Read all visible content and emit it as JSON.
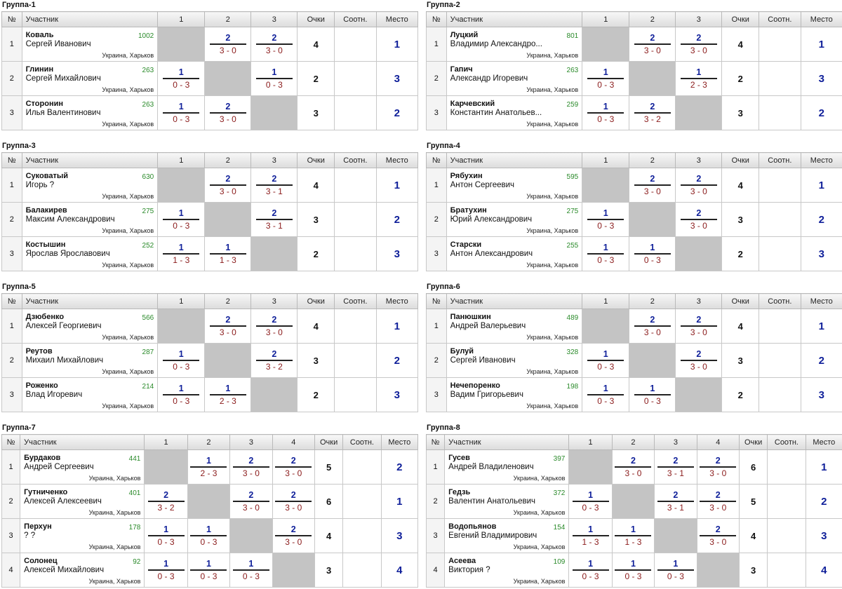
{
  "headers": {
    "num": "№",
    "participant": "Участник",
    "points": "Очки",
    "ratio": "Соотн.",
    "place": "Место"
  },
  "location": "Украина, Харьков",
  "groups": [
    {
      "title": "Группа-1",
      "cols": [
        "1",
        "2",
        "3"
      ],
      "rows": [
        {
          "no": "1",
          "surname": "Коваль",
          "name": "Сергей Иванович",
          "rating": "1002",
          "cells": [
            null,
            {
              "p": "2",
              "r": "3 - 0"
            },
            {
              "p": "2",
              "r": "3 - 0"
            }
          ],
          "points": "4",
          "ratio": "",
          "place": "1"
        },
        {
          "no": "2",
          "surname": "Глинин",
          "name": "Сергей Михайлович",
          "rating": "263",
          "cells": [
            {
              "p": "1",
              "r": "0 - 3"
            },
            null,
            {
              "p": "1",
              "r": "0 - 3"
            }
          ],
          "points": "2",
          "ratio": "",
          "place": "3"
        },
        {
          "no": "3",
          "surname": "Сторонин",
          "name": "Илья Валентинович",
          "rating": "263",
          "cells": [
            {
              "p": "1",
              "r": "0 - 3"
            },
            {
              "p": "2",
              "r": "3 - 0"
            },
            null
          ],
          "points": "3",
          "ratio": "",
          "place": "2"
        }
      ]
    },
    {
      "title": "Группа-2",
      "cols": [
        "1",
        "2",
        "3"
      ],
      "rows": [
        {
          "no": "1",
          "surname": "Луцкий",
          "name": "Владимир Александро...",
          "rating": "801",
          "cells": [
            null,
            {
              "p": "2",
              "r": "3 - 0"
            },
            {
              "p": "2",
              "r": "3 - 0"
            }
          ],
          "points": "4",
          "ratio": "",
          "place": "1"
        },
        {
          "no": "2",
          "surname": "Гапич",
          "name": "Александр Игоревич",
          "rating": "263",
          "cells": [
            {
              "p": "1",
              "r": "0 - 3"
            },
            null,
            {
              "p": "1",
              "r": "2 - 3"
            }
          ],
          "points": "2",
          "ratio": "",
          "place": "3"
        },
        {
          "no": "3",
          "surname": "Карчевский",
          "name": "Константин Анатольев...",
          "rating": "259",
          "cells": [
            {
              "p": "1",
              "r": "0 - 3"
            },
            {
              "p": "2",
              "r": "3 - 2"
            },
            null
          ],
          "points": "3",
          "ratio": "",
          "place": "2"
        }
      ]
    },
    {
      "title": "Группа-3",
      "cols": [
        "1",
        "2",
        "3"
      ],
      "rows": [
        {
          "no": "1",
          "surname": "Суковатый",
          "name": "Игорь ?",
          "rating": "630",
          "cells": [
            null,
            {
              "p": "2",
              "r": "3 - 0"
            },
            {
              "p": "2",
              "r": "3 - 1"
            }
          ],
          "points": "4",
          "ratio": "",
          "place": "1"
        },
        {
          "no": "2",
          "surname": "Балакирев",
          "name": "Максим Александрович",
          "rating": "275",
          "cells": [
            {
              "p": "1",
              "r": "0 - 3"
            },
            null,
            {
              "p": "2",
              "r": "3 - 1"
            }
          ],
          "points": "3",
          "ratio": "",
          "place": "2"
        },
        {
          "no": "3",
          "surname": "Костышин",
          "name": "Ярослав Ярославович",
          "rating": "252",
          "cells": [
            {
              "p": "1",
              "r": "1 - 3"
            },
            {
              "p": "1",
              "r": "1 - 3"
            },
            null
          ],
          "points": "2",
          "ratio": "",
          "place": "3"
        }
      ]
    },
    {
      "title": "Группа-4",
      "cols": [
        "1",
        "2",
        "3"
      ],
      "rows": [
        {
          "no": "1",
          "surname": "Рябухин",
          "name": "Антон Сергеевич",
          "rating": "595",
          "cells": [
            null,
            {
              "p": "2",
              "r": "3 - 0"
            },
            {
              "p": "2",
              "r": "3 - 0"
            }
          ],
          "points": "4",
          "ratio": "",
          "place": "1"
        },
        {
          "no": "2",
          "surname": "Братухин",
          "name": "Юрий Александрович",
          "rating": "275",
          "cells": [
            {
              "p": "1",
              "r": "0 - 3"
            },
            null,
            {
              "p": "2",
              "r": "3 - 0"
            }
          ],
          "points": "3",
          "ratio": "",
          "place": "2"
        },
        {
          "no": "3",
          "surname": "Старски",
          "name": "Антон Александрович",
          "rating": "255",
          "cells": [
            {
              "p": "1",
              "r": "0 - 3"
            },
            {
              "p": "1",
              "r": "0 - 3"
            },
            null
          ],
          "points": "2",
          "ratio": "",
          "place": "3"
        }
      ]
    },
    {
      "title": "Группа-5",
      "cols": [
        "1",
        "2",
        "3"
      ],
      "rows": [
        {
          "no": "1",
          "surname": "Дзюбенко",
          "name": "Алексей Георгиевич",
          "rating": "566",
          "cells": [
            null,
            {
              "p": "2",
              "r": "3 - 0"
            },
            {
              "p": "2",
              "r": "3 - 0"
            }
          ],
          "points": "4",
          "ratio": "",
          "place": "1"
        },
        {
          "no": "2",
          "surname": "Реутов",
          "name": "Михаил Михайлович",
          "rating": "287",
          "cells": [
            {
              "p": "1",
              "r": "0 - 3"
            },
            null,
            {
              "p": "2",
              "r": "3 - 2"
            }
          ],
          "points": "3",
          "ratio": "",
          "place": "2"
        },
        {
          "no": "3",
          "surname": "Роженко",
          "name": "Влад Игоревич",
          "rating": "214",
          "cells": [
            {
              "p": "1",
              "r": "0 - 3"
            },
            {
              "p": "1",
              "r": "2 - 3"
            },
            null
          ],
          "points": "2",
          "ratio": "",
          "place": "3"
        }
      ]
    },
    {
      "title": "Группа-6",
      "cols": [
        "1",
        "2",
        "3"
      ],
      "rows": [
        {
          "no": "1",
          "surname": "Панюшкин",
          "name": "Андрей Валерьевич",
          "rating": "489",
          "cells": [
            null,
            {
              "p": "2",
              "r": "3 - 0"
            },
            {
              "p": "2",
              "r": "3 - 0"
            }
          ],
          "points": "4",
          "ratio": "",
          "place": "1"
        },
        {
          "no": "2",
          "surname": "Булуй",
          "name": "Сергей Иванович",
          "rating": "328",
          "cells": [
            {
              "p": "1",
              "r": "0 - 3"
            },
            null,
            {
              "p": "2",
              "r": "3 - 0"
            }
          ],
          "points": "3",
          "ratio": "",
          "place": "2"
        },
        {
          "no": "3",
          "surname": "Нечепоренко",
          "name": "Вадим Григорьевич",
          "rating": "198",
          "cells": [
            {
              "p": "1",
              "r": "0 - 3"
            },
            {
              "p": "1",
              "r": "0 - 3"
            },
            null
          ],
          "points": "2",
          "ratio": "",
          "place": "3"
        }
      ]
    },
    {
      "title": "Группа-7",
      "cols": [
        "1",
        "2",
        "3",
        "4"
      ],
      "rows": [
        {
          "no": "1",
          "surname": "Бурдаков",
          "name": "Андрей Сергеевич",
          "rating": "441",
          "cells": [
            null,
            {
              "p": "1",
              "r": "2 - 3"
            },
            {
              "p": "2",
              "r": "3 - 0"
            },
            {
              "p": "2",
              "r": "3 - 0"
            }
          ],
          "points": "5",
          "ratio": "",
          "place": "2"
        },
        {
          "no": "2",
          "surname": "Гутниченко",
          "name": "Алексей Алексеевич",
          "rating": "401",
          "cells": [
            {
              "p": "2",
              "r": "3 - 2"
            },
            null,
            {
              "p": "2",
              "r": "3 - 0"
            },
            {
              "p": "2",
              "r": "3 - 0"
            }
          ],
          "points": "6",
          "ratio": "",
          "place": "1"
        },
        {
          "no": "3",
          "surname": "Перхун",
          "name": "? ?",
          "rating": "178",
          "cells": [
            {
              "p": "1",
              "r": "0 - 3"
            },
            {
              "p": "1",
              "r": "0 - 3"
            },
            null,
            {
              "p": "2",
              "r": "3 - 0"
            }
          ],
          "points": "4",
          "ratio": "",
          "place": "3"
        },
        {
          "no": "4",
          "surname": "Солонец",
          "name": "Алексей Михайлович",
          "rating": "92",
          "cells": [
            {
              "p": "1",
              "r": "0 - 3"
            },
            {
              "p": "1",
              "r": "0 - 3"
            },
            {
              "p": "1",
              "r": "0 - 3"
            },
            null
          ],
          "points": "3",
          "ratio": "",
          "place": "4"
        }
      ]
    },
    {
      "title": "Группа-8",
      "cols": [
        "1",
        "2",
        "3",
        "4"
      ],
      "rows": [
        {
          "no": "1",
          "surname": "Гусев",
          "name": "Андрей Владиленович",
          "rating": "397",
          "cells": [
            null,
            {
              "p": "2",
              "r": "3 - 0"
            },
            {
              "p": "2",
              "r": "3 - 1"
            },
            {
              "p": "2",
              "r": "3 - 0"
            }
          ],
          "points": "6",
          "ratio": "",
          "place": "1"
        },
        {
          "no": "2",
          "surname": "Гедзь",
          "name": "Валентин Анатольевич",
          "rating": "372",
          "cells": [
            {
              "p": "1",
              "r": "0 - 3"
            },
            null,
            {
              "p": "2",
              "r": "3 - 1"
            },
            {
              "p": "2",
              "r": "3 - 0"
            }
          ],
          "points": "5",
          "ratio": "",
          "place": "2"
        },
        {
          "no": "3",
          "surname": "Водопьянов",
          "name": "Евгений Владимирович",
          "rating": "154",
          "cells": [
            {
              "p": "1",
              "r": "1 - 3"
            },
            {
              "p": "1",
              "r": "1 - 3"
            },
            null,
            {
              "p": "2",
              "r": "3 - 0"
            }
          ],
          "points": "4",
          "ratio": "",
          "place": "3"
        },
        {
          "no": "4",
          "surname": "Асеева",
          "name": "Виктория ?",
          "rating": "109",
          "cells": [
            {
              "p": "1",
              "r": "0 - 3"
            },
            {
              "p": "1",
              "r": "0 - 3"
            },
            {
              "p": "1",
              "r": "0 - 3"
            },
            null
          ],
          "points": "3",
          "ratio": "",
          "place": "4"
        }
      ]
    }
  ]
}
